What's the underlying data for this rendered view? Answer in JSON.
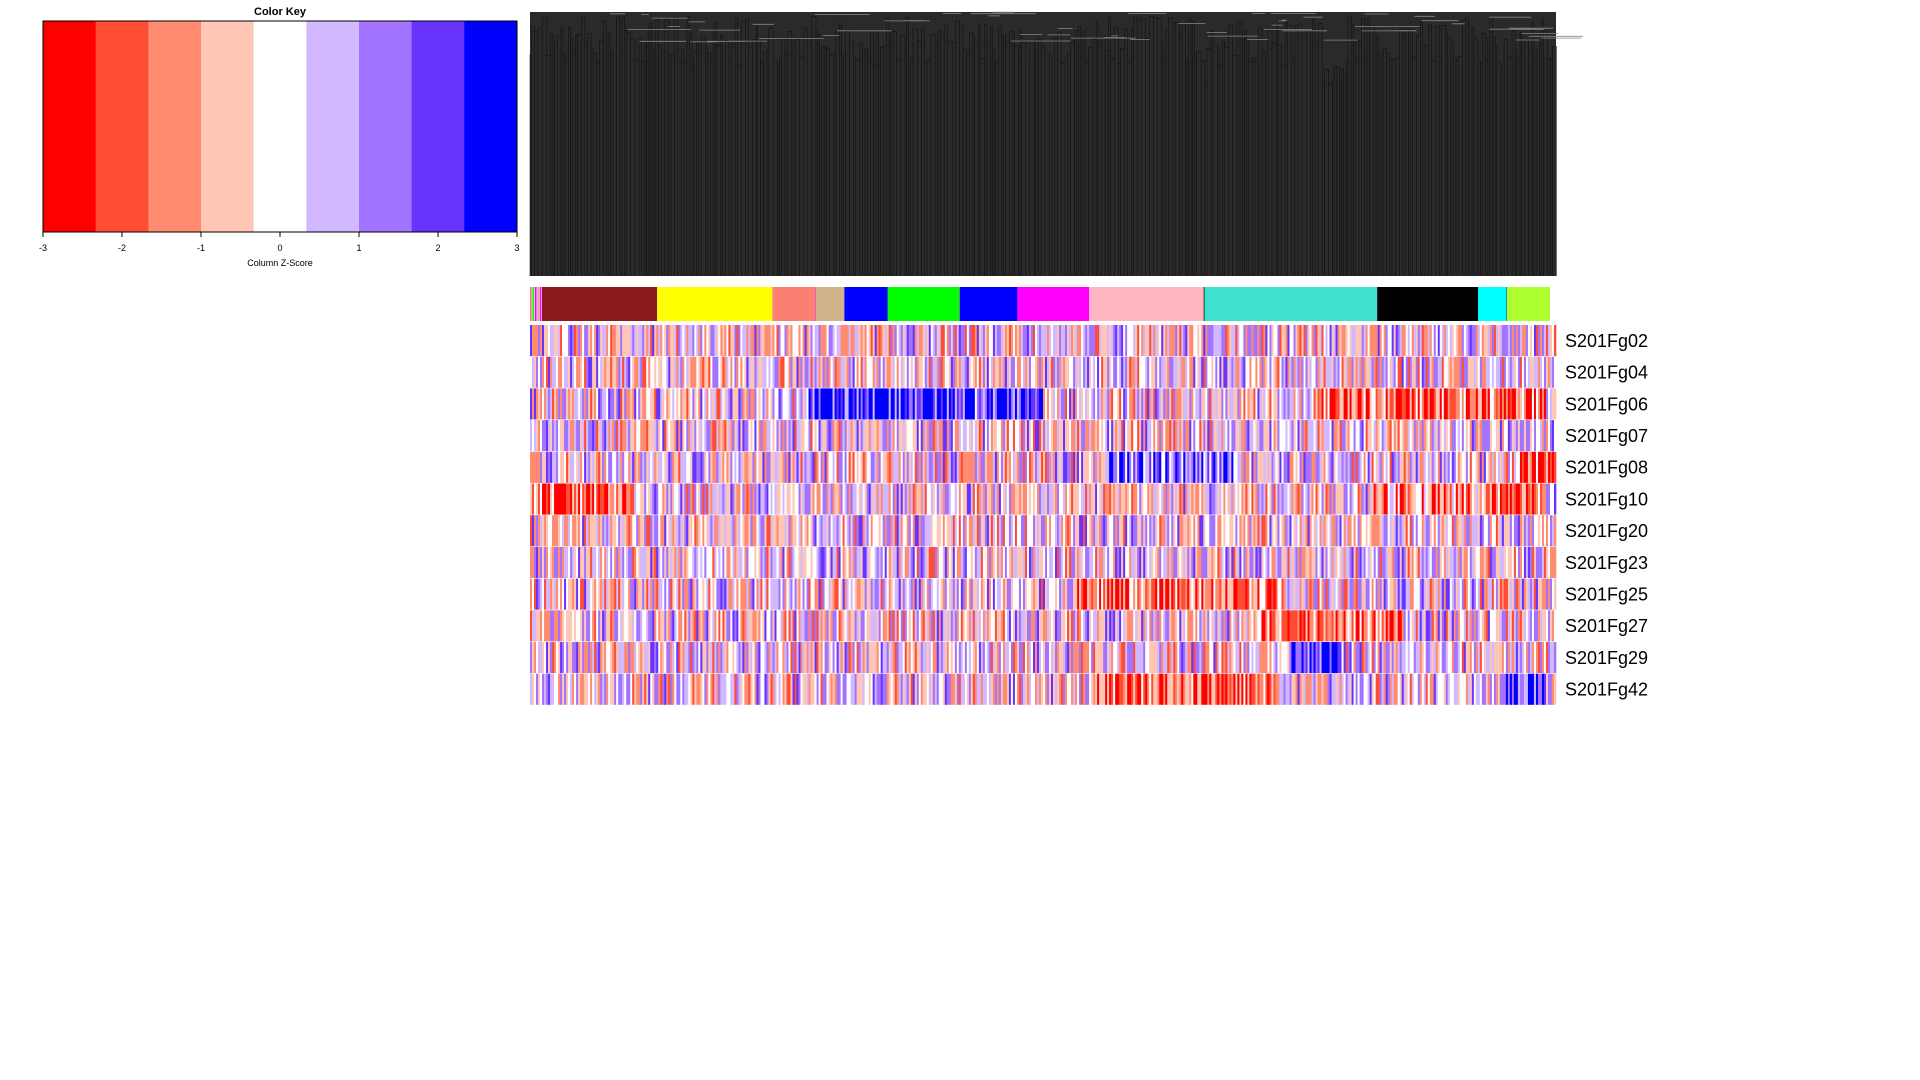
{
  "chart_data": {
    "type": "heatmap",
    "color_key": {
      "title": "Color Key",
      "xlabel": "Column Z-Score",
      "range": [
        -3,
        3
      ],
      "ticks": [
        "-3",
        "-2",
        "-1",
        "0",
        "1",
        "2",
        "3"
      ],
      "bin_colors": [
        "#ff0000",
        "#ff4d33",
        "#ff8b70",
        "#ffc6b5",
        "#ffffff",
        "#d1b8ff",
        "#a273ff",
        "#6633ff",
        "#0000ff"
      ]
    },
    "rows": [
      "S201Fg02",
      "S201Fg04",
      "S201Fg06",
      "S201Fg07",
      "S201Fg08",
      "S201Fg10",
      "S201Fg20",
      "S201Fg23",
      "S201Fg25",
      "S201Fg27",
      "S201Fg29",
      "S201Fg42"
    ],
    "column_count": 2200,
    "dendrogram": {
      "position": "top",
      "clustered": "columns"
    },
    "module_colors": [
      {
        "color": "#8b1a1a",
        "fraction": 0.08
      },
      {
        "color": "#ffff00",
        "fraction": 0.08
      },
      {
        "color": "#fa8072",
        "fraction": 0.03
      },
      {
        "color": "#d2b48c",
        "fraction": 0.02
      },
      {
        "color": "#0000ff",
        "fraction": 0.03
      },
      {
        "color": "#00ff00",
        "fraction": 0.05
      },
      {
        "color": "#0000ff",
        "fraction": 0.04
      },
      {
        "color": "#ff00ff",
        "fraction": 0.05
      },
      {
        "color": "#ffb6c1",
        "fraction": 0.08
      },
      {
        "color": "#40e0d0",
        "fraction": 0.12
      },
      {
        "color": "#000000",
        "fraction": 0.07
      },
      {
        "color": "#00ffff",
        "fraction": 0.02
      },
      {
        "color": "#adff2f",
        "fraction": 0.03
      }
    ]
  }
}
